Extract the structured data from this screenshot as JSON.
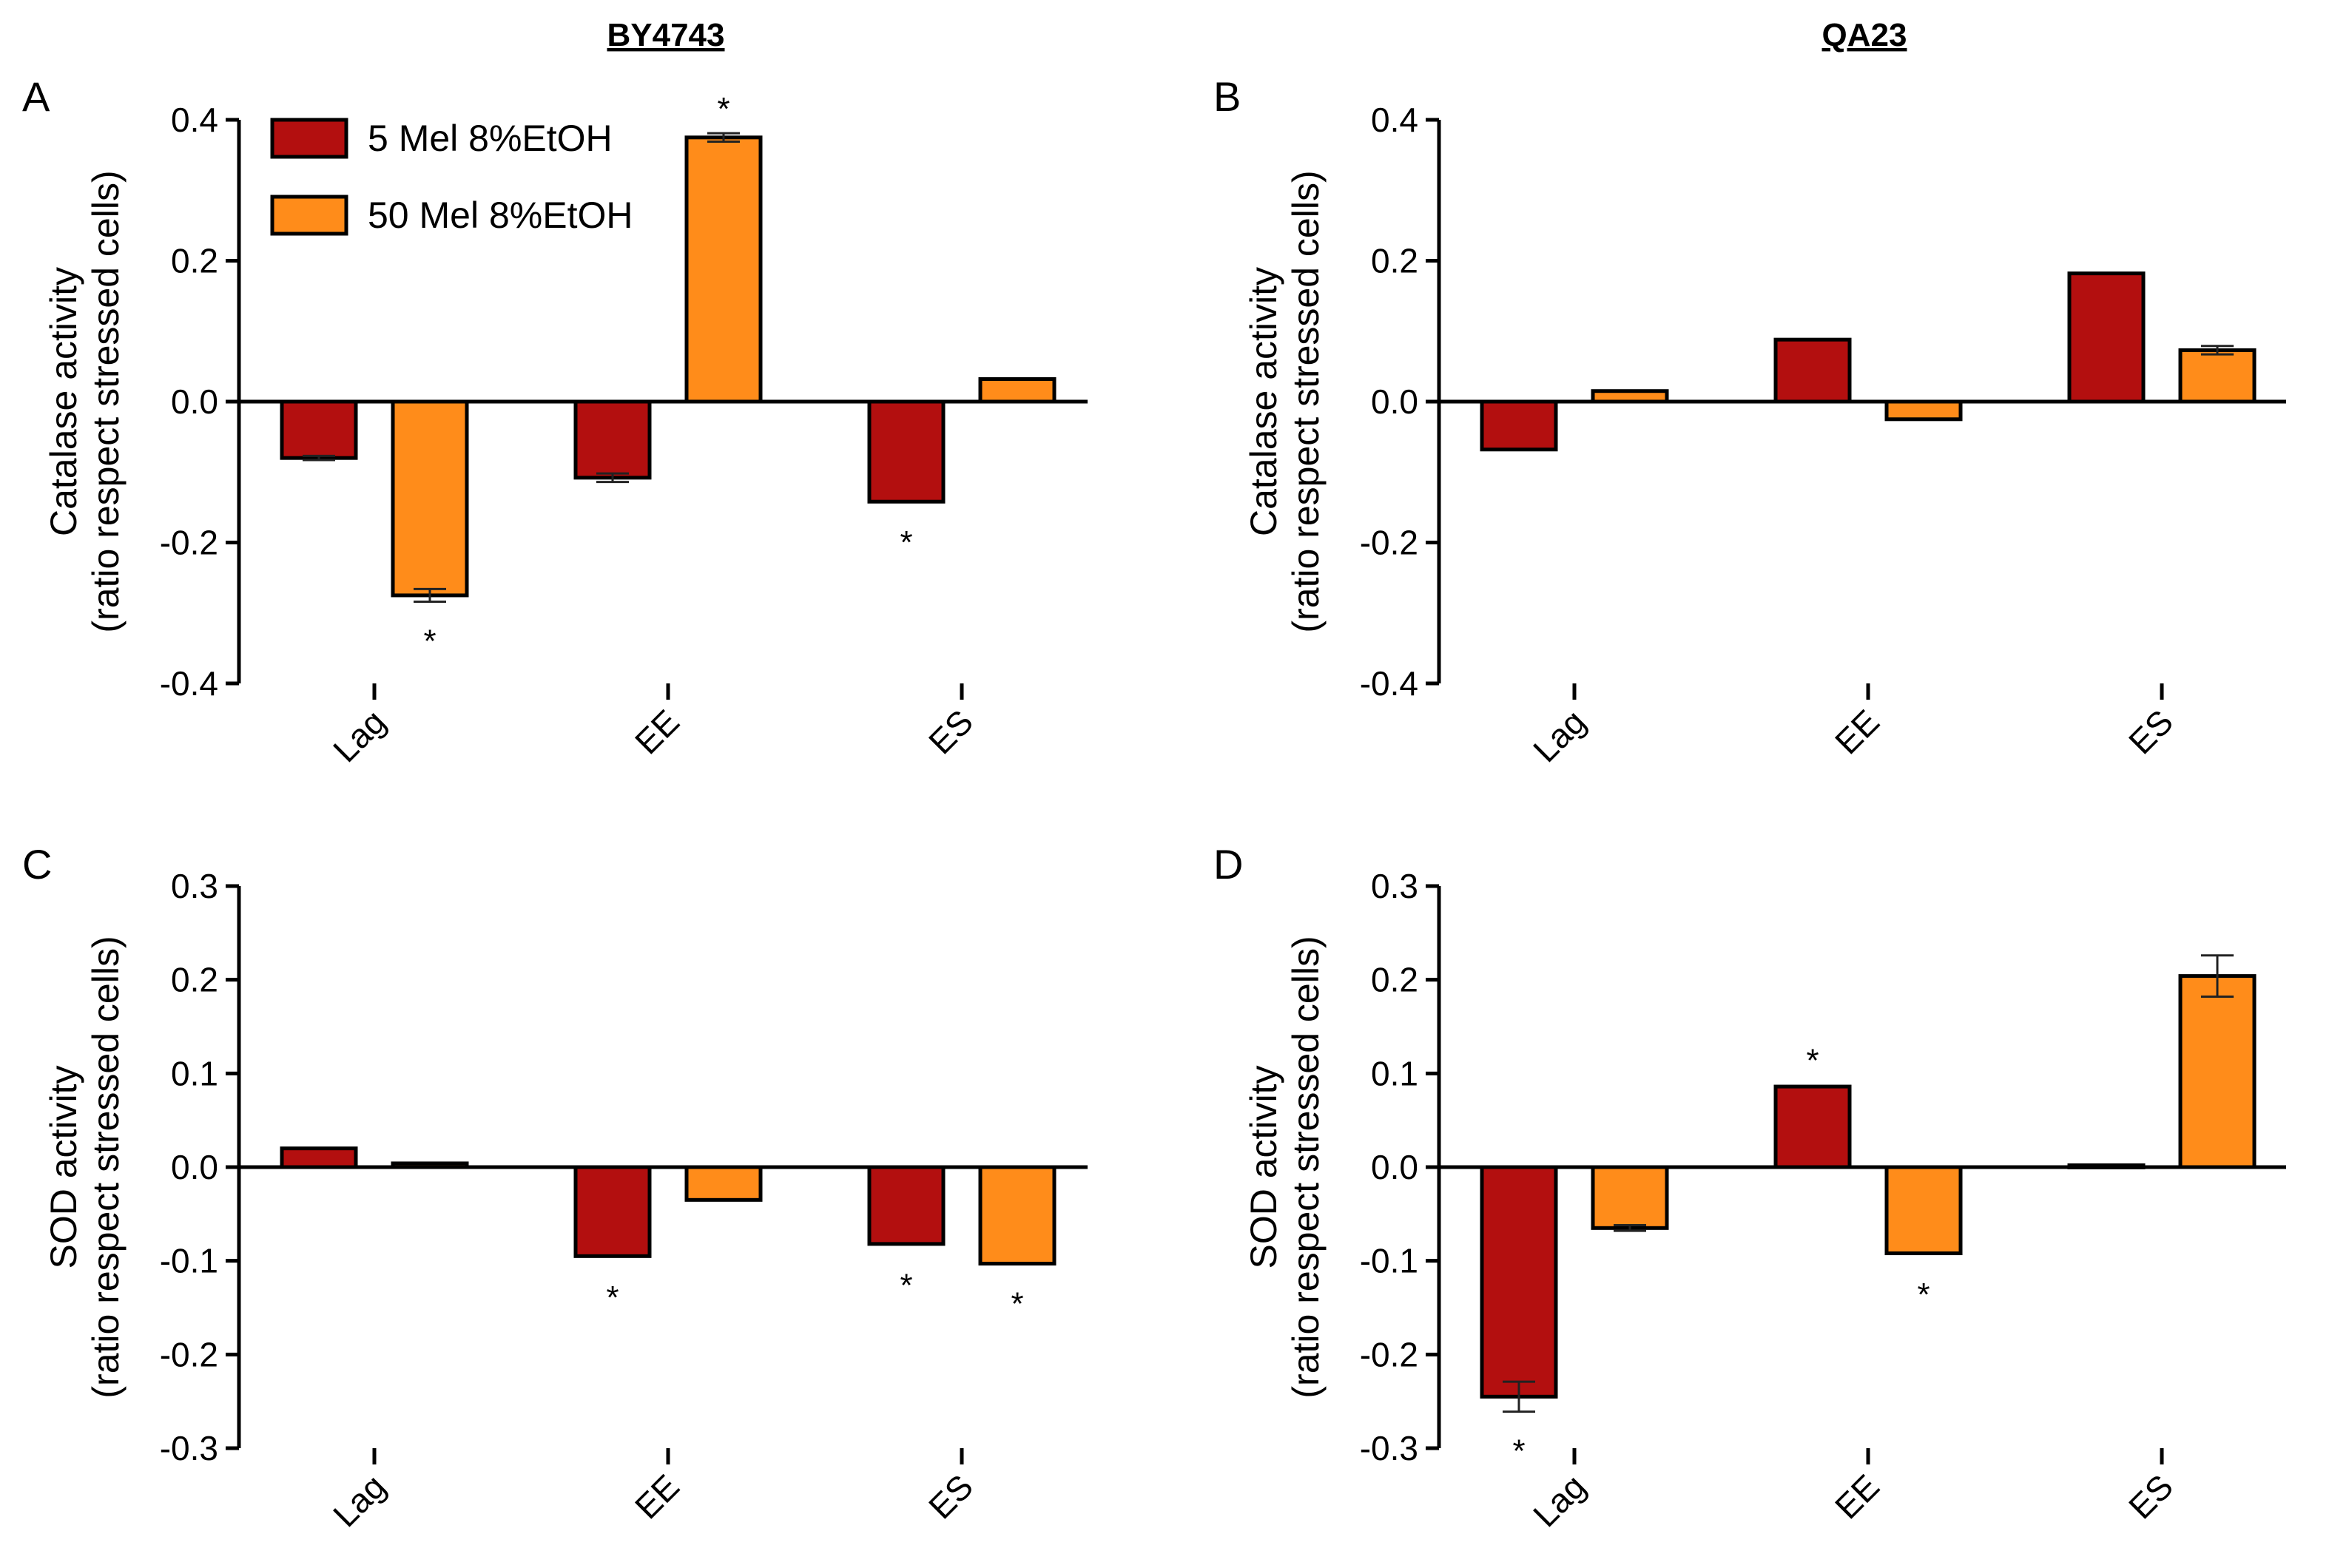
{
  "figure": {
    "col_titles": [
      "BY4743",
      "QA23"
    ],
    "legend": [
      {
        "label": "5 Mel 8%EtOH",
        "color": "#b30f0f"
      },
      {
        "label": "50 Mel 8%EtOH",
        "color": "#ff8c1a"
      }
    ],
    "edge_color": "#000000"
  },
  "chart_data": [
    {
      "type": "bar",
      "panel": "A",
      "strain": "BY4743",
      "ylabel_line1": "Catalase activity",
      "ylabel_line2": "(ratio respect stressed cells)",
      "ylim": [
        -0.4,
        0.4
      ],
      "yticks": [
        -0.4,
        -0.2,
        0.0,
        0.2,
        0.4
      ],
      "ytick_labels": [
        "-0.4",
        "-0.2",
        "0.0",
        "0.2",
        "0.4"
      ],
      "categories": [
        "Lag",
        "EE",
        "ES"
      ],
      "series": [
        {
          "name": "5 Mel 8%EtOH",
          "values": [
            -0.08,
            -0.108,
            -0.142
          ],
          "errors": [
            0.003,
            0.006,
            0.002
          ],
          "sig": [
            false,
            false,
            true
          ]
        },
        {
          "name": "50 Mel 8%EtOH",
          "values": [
            -0.275,
            0.375,
            0.032
          ],
          "errors": [
            0.009,
            0.006,
            0.002
          ],
          "sig": [
            true,
            true,
            false
          ]
        }
      ],
      "show_legend": true
    },
    {
      "type": "bar",
      "panel": "B",
      "strain": "QA23",
      "ylabel_line1": "Catalase activity",
      "ylabel_line2": "(ratio respect stressed cells)",
      "ylim": [
        -0.4,
        0.4
      ],
      "yticks": [
        -0.4,
        -0.2,
        0.0,
        0.2,
        0.4
      ],
      "ytick_labels": [
        "-0.4",
        "-0.2",
        "0.0",
        "0.2",
        "0.4"
      ],
      "categories": [
        "Lag",
        "EE",
        "ES"
      ],
      "series": [
        {
          "name": "5 Mel 8%EtOH",
          "values": [
            -0.068,
            0.088,
            0.182
          ],
          "errors": [
            0.002,
            0.002,
            0.001
          ],
          "sig": [
            false,
            false,
            false
          ]
        },
        {
          "name": "50 Mel 8%EtOH",
          "values": [
            0.015,
            -0.025,
            0.073
          ],
          "errors": [
            0.001,
            0.002,
            0.006
          ],
          "sig": [
            false,
            false,
            false
          ]
        }
      ],
      "show_legend": false
    },
    {
      "type": "bar",
      "panel": "C",
      "strain": "BY4743",
      "ylabel_line1": "SOD activity",
      "ylabel_line2": "(ratio respect stressed cells)",
      "ylim": [
        -0.3,
        0.3
      ],
      "yticks": [
        -0.3,
        -0.2,
        -0.1,
        0.0,
        0.1,
        0.2,
        0.3
      ],
      "ytick_labels": [
        "-0.3",
        "-0.2",
        "-0.1",
        "0.0",
        "0.1",
        "0.2",
        "0.3"
      ],
      "categories": [
        "Lag",
        "EE",
        "ES"
      ],
      "series": [
        {
          "name": "5 Mel 8%EtOH",
          "values": [
            0.02,
            -0.095,
            -0.082
          ],
          "errors": [
            0.001,
            0.002,
            0.002
          ],
          "sig": [
            false,
            true,
            true
          ]
        },
        {
          "name": "50 Mel 8%EtOH",
          "values": [
            0.004,
            -0.035,
            -0.103
          ],
          "errors": [
            0.001,
            0.001,
            0.001
          ],
          "sig": [
            false,
            false,
            true
          ]
        }
      ],
      "show_legend": false
    },
    {
      "type": "bar",
      "panel": "D",
      "strain": "QA23",
      "ylabel_line1": "SOD activity",
      "ylabel_line2": "(ratio respect stressed cells)",
      "ylim": [
        -0.3,
        0.3
      ],
      "yticks": [
        -0.3,
        -0.2,
        -0.1,
        0.0,
        0.1,
        0.2,
        0.3
      ],
      "ytick_labels": [
        "-0.3",
        "-0.2",
        "-0.1",
        "0.0",
        "0.1",
        "0.2",
        "0.3"
      ],
      "categories": [
        "Lag",
        "EE",
        "ES"
      ],
      "series": [
        {
          "name": "5 Mel 8%EtOH",
          "values": [
            -0.245,
            0.086,
            0.002
          ],
          "errors": [
            0.016,
            0.002,
            0.001
          ],
          "sig": [
            true,
            true,
            false
          ]
        },
        {
          "name": "50 Mel 8%EtOH",
          "values": [
            -0.065,
            -0.092,
            0.204
          ],
          "errors": [
            0.003,
            0.002,
            0.022
          ],
          "sig": [
            false,
            true,
            false
          ]
        }
      ],
      "show_legend": false
    }
  ]
}
